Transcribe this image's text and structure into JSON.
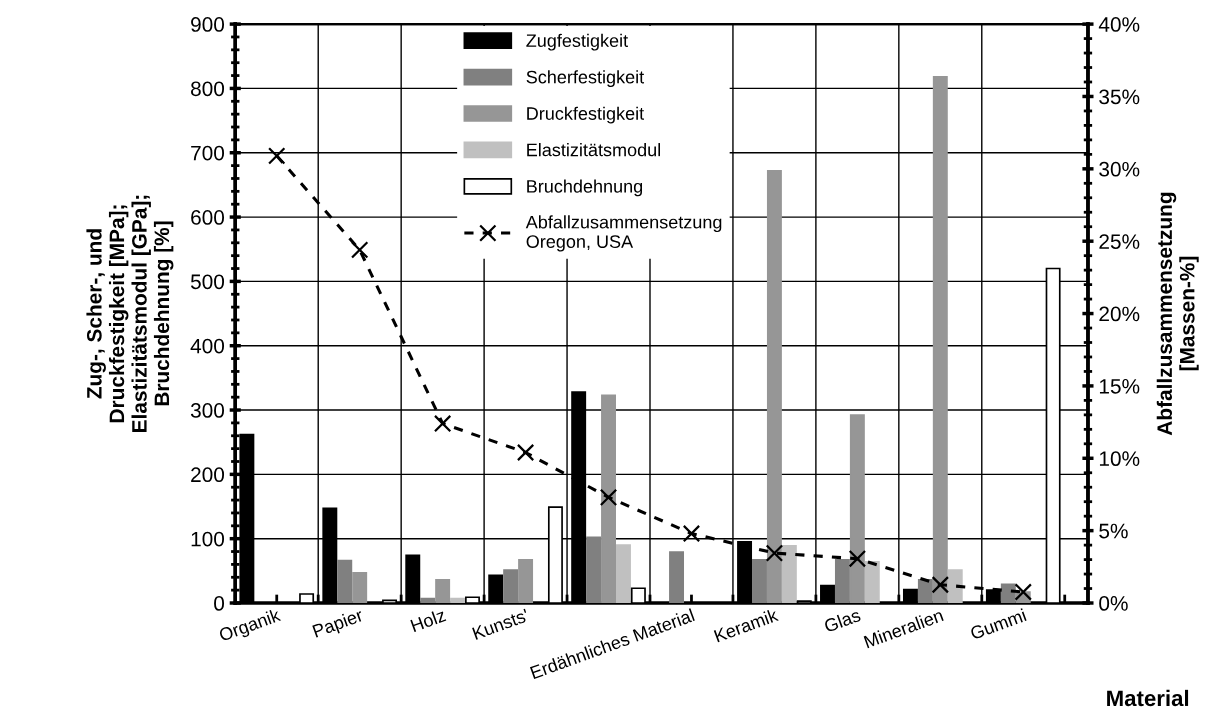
{
  "chart_data": {
    "type": "bar",
    "categories": [
      "Organik",
      "Papier",
      "Holz",
      "Kunsts'",
      null,
      "Erdähnliches Material",
      "Keramik",
      "Glas",
      "Mineralien",
      "Gummi"
    ],
    "series": [
      {
        "name": "Zugfestigkeit",
        "color": "#000000",
        "values": [
          262,
          147,
          74,
          43,
          328,
          0,
          95,
          27,
          21,
          20
        ]
      },
      {
        "name": "Scherfestigkeit",
        "color": "#808080",
        "values": [
          0,
          66,
          7,
          51,
          102,
          79,
          67,
          67,
          36,
          29
        ]
      },
      {
        "name": "Druckfestigkeit",
        "color": "#969696",
        "values": [
          0,
          47,
          36,
          67,
          323,
          0,
          672,
          292,
          818,
          17
        ]
      },
      {
        "name": "Elastizitätsmodul",
        "color": "#c0c0c0",
        "values": [
          0,
          0,
          7,
          0,
          90,
          0,
          89,
          64,
          51,
          0
        ]
      },
      {
        "name": "Bruchdehnung",
        "color": "#ffffff",
        "values": [
          14,
          4,
          9,
          149,
          23,
          0,
          3,
          0,
          0,
          520
        ]
      },
      {
        "name": "Abfallzusammensetzung\nOregon, USA",
        "type": "line",
        "axis": "y2",
        "color": "#000000",
        "marker": "cross",
        "line_style": "dashed",
        "values": [
          30.9,
          24.4,
          12.4,
          10.4,
          7.3,
          4.8,
          3.45,
          3.06,
          1.26,
          0.76
        ]
      }
    ],
    "ylim": [
      0,
      900
    ],
    "yticks": [
      0,
      100,
      200,
      300,
      400,
      500,
      600,
      700,
      800,
      900
    ],
    "y2lim": [
      0,
      40
    ],
    "y2ticks": [
      {
        "value": 0,
        "label": "0%"
      },
      {
        "value": 5,
        "label": "5%"
      },
      {
        "value": 10,
        "label": "10%"
      },
      {
        "value": 15,
        "label": "15%"
      },
      {
        "value": 20,
        "label": "20%"
      },
      {
        "value": 25,
        "label": "25%"
      },
      {
        "value": 30,
        "label": "30%"
      },
      {
        "value": 35,
        "label": "35%"
      },
      {
        "value": 40,
        "label": "40%"
      }
    ],
    "ylabel": "Zug-, Scher-, und\nDruckfestigkeit [MPa];\nElastizitätsmodul [GPa];\nBruchdehnung [%]",
    "y2label": "Abfallzusammensetzung\n[Massen-%]",
    "xlabel": "Material",
    "grid": true,
    "legend": "top"
  }
}
